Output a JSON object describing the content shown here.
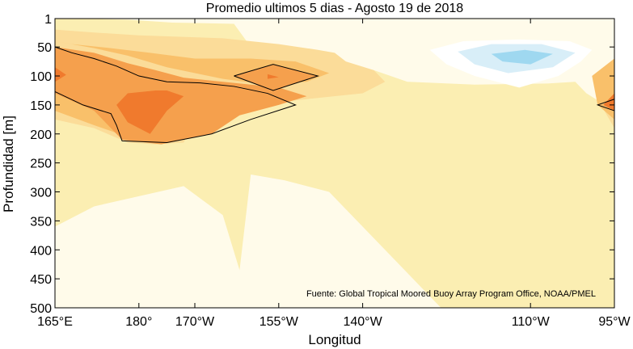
{
  "chart_data": {
    "type": "heatmap",
    "title": "Promedio ultimos 5 dias - Agosto 19 de 2018",
    "xlabel": "Longitud",
    "ylabel": "Profundidad [m]",
    "note": "Fuente: Global Tropical Moored Buoy Array Program Office, NOAA/PMEL",
    "x_ticks": [
      {
        "label": "165°E",
        "lon": 165
      },
      {
        "label": "180°",
        "lon": 180
      },
      {
        "label": "170°W",
        "lon": 190
      },
      {
        "label": "155°W",
        "lon": 205
      },
      {
        "label": "140°W",
        "lon": 220
      },
      {
        "label": "110°W",
        "lon": 250
      },
      {
        "label": "95°W",
        "lon": 265
      }
    ],
    "y_ticks": [
      1,
      50,
      100,
      150,
      200,
      250,
      300,
      350,
      400,
      450,
      500
    ],
    "xlim": [
      165,
      265
    ],
    "ylim": [
      500,
      1
    ],
    "grid": false,
    "regions": [
      {
        "level": "neutral",
        "color": "#fffbea",
        "points": [
          [
            165,
            1
          ],
          [
            265,
            1
          ],
          [
            265,
            500
          ],
          [
            165,
            500
          ]
        ]
      },
      {
        "level": "weak_warm",
        "color": "#fbeeb2",
        "points": [
          [
            165,
            1
          ],
          [
            170,
            1
          ],
          [
            178,
            3
          ],
          [
            186,
            8
          ],
          [
            197,
            10
          ],
          [
            200,
            50
          ],
          [
            208,
            55
          ],
          [
            213,
            75
          ],
          [
            217,
            85
          ],
          [
            222,
            90
          ],
          [
            228,
            110
          ],
          [
            240,
            115
          ],
          [
            253,
            113
          ],
          [
            258,
            110
          ],
          [
            260,
            130
          ],
          [
            265,
            160
          ],
          [
            265,
            500
          ],
          [
            234,
            500
          ],
          [
            214,
            300
          ],
          [
            206,
            280
          ],
          [
            200,
            270
          ],
          [
            198,
            435
          ],
          [
            195,
            340
          ],
          [
            188,
            290
          ],
          [
            172,
            325
          ],
          [
            165,
            360
          ]
        ]
      },
      {
        "level": "mid_warm",
        "color": "#fbdc99",
        "points": [
          [
            165,
            20
          ],
          [
            172,
            25
          ],
          [
            180,
            30
          ],
          [
            195,
            35
          ],
          [
            205,
            45
          ],
          [
            212,
            55
          ],
          [
            215,
            60
          ],
          [
            217,
            75
          ],
          [
            222,
            90
          ],
          [
            224,
            110
          ],
          [
            220,
            130
          ],
          [
            200,
            150
          ],
          [
            190,
            180
          ],
          [
            188,
            215
          ],
          [
            183,
            218
          ],
          [
            178,
            215
          ],
          [
            172,
            190
          ],
          [
            165,
            175
          ]
        ]
      },
      {
        "level": "mid_warm_east",
        "color": "#fbdc99",
        "points": [
          [
            265,
            90
          ],
          [
            262,
            110
          ],
          [
            262,
            140
          ],
          [
            265,
            190
          ]
        ]
      },
      {
        "level": "warm",
        "color": "#f9c06a",
        "points": [
          [
            165,
            40
          ],
          [
            172,
            52
          ],
          [
            178,
            65
          ],
          [
            185,
            85
          ],
          [
            195,
            105
          ],
          [
            203,
            115
          ],
          [
            210,
            110
          ],
          [
            214,
            95
          ],
          [
            208,
            75
          ],
          [
            200,
            70
          ],
          [
            190,
            70
          ],
          [
            182,
            60
          ],
          [
            175,
            52
          ],
          [
            168,
            45
          ]
        ]
      },
      {
        "level": "warm_lower",
        "color": "#f9c06a",
        "points": [
          [
            165,
            120
          ],
          [
            172,
            125
          ],
          [
            180,
            140
          ],
          [
            190,
            160
          ],
          [
            195,
            185
          ],
          [
            190,
            200
          ],
          [
            182,
            210
          ],
          [
            178,
            205
          ],
          [
            172,
            185
          ],
          [
            165,
            160
          ]
        ]
      },
      {
        "level": "warm_east",
        "color": "#f9c06a",
        "points": [
          [
            265,
            70
          ],
          [
            261,
            100
          ],
          [
            262,
            150
          ],
          [
            265,
            175
          ]
        ]
      },
      {
        "level": "hot",
        "color": "#f5a04d",
        "points": [
          [
            165,
            50
          ],
          [
            172,
            60
          ],
          [
            178,
            78
          ],
          [
            183,
            90
          ],
          [
            188,
            103
          ],
          [
            195,
            110
          ],
          [
            200,
            115
          ],
          [
            205,
            120
          ],
          [
            210,
            135
          ],
          [
            205,
            150
          ],
          [
            198,
            168
          ],
          [
            193,
            200
          ],
          [
            184,
            218
          ],
          [
            177,
            210
          ],
          [
            175,
            190
          ],
          [
            172,
            160
          ],
          [
            165,
            130
          ]
        ]
      },
      {
        "level": "hot_core",
        "color": "#f5a04d",
        "points": [
          [
            197,
            100
          ],
          [
            204,
            80
          ],
          [
            212,
            100
          ],
          [
            204,
            125
          ]
        ]
      },
      {
        "level": "hotter",
        "color": "#f07a2d",
        "points": [
          [
            165,
            85
          ],
          [
            167,
            98
          ],
          [
            165,
            110
          ]
        ]
      },
      {
        "level": "hotter_mid",
        "color": "#f07a2d",
        "points": [
          [
            178,
            130
          ],
          [
            183,
            125
          ],
          [
            185,
            125
          ],
          [
            188,
            135
          ],
          [
            185,
            160
          ],
          [
            182,
            200
          ],
          [
            178,
            180
          ],
          [
            176,
            150
          ]
        ]
      },
      {
        "level": "hotter_point",
        "color": "#f07a2d",
        "points": [
          [
            203,
            97
          ],
          [
            205,
            102
          ],
          [
            203,
            105
          ]
        ]
      },
      {
        "level": "hotter_east",
        "color": "#f07a2d",
        "points": [
          [
            265,
            130
          ],
          [
            263,
            150
          ],
          [
            265,
            160
          ]
        ]
      },
      {
        "level": "cool_ring",
        "color": "#ffffff",
        "points": [
          [
            232,
            55
          ],
          [
            238,
            40
          ],
          [
            248,
            37
          ],
          [
            257,
            40
          ],
          [
            261,
            55
          ],
          [
            259,
            75
          ],
          [
            255,
            100
          ],
          [
            248,
            120
          ],
          [
            240,
            100
          ],
          [
            235,
            80
          ]
        ]
      },
      {
        "level": "cool",
        "color": "#d8eef8",
        "points": [
          [
            237,
            58
          ],
          [
            243,
            45
          ],
          [
            252,
            45
          ],
          [
            258,
            60
          ],
          [
            254,
            85
          ],
          [
            246,
            95
          ],
          [
            240,
            80
          ]
        ]
      },
      {
        "level": "cooler",
        "color": "#9fd8f0",
        "points": [
          [
            243,
            62
          ],
          [
            249,
            55
          ],
          [
            254,
            62
          ],
          [
            250,
            80
          ],
          [
            245,
            75
          ]
        ]
      }
    ],
    "contours": [
      [
        [
          165,
          50
        ],
        [
          168,
          60
        ],
        [
          172,
          70
        ],
        [
          176,
          83
        ],
        [
          180,
          100
        ],
        [
          185,
          110
        ],
        [
          191,
          112
        ],
        [
          197,
          118
        ],
        [
          203,
          130
        ],
        [
          208,
          150
        ],
        [
          200,
          175
        ],
        [
          193,
          200
        ],
        [
          185,
          215
        ],
        [
          177,
          212
        ],
        [
          176,
          185
        ],
        [
          175,
          165
        ],
        [
          170,
          150
        ],
        [
          165,
          127
        ]
      ],
      [
        [
          197,
          100
        ],
        [
          204,
          80
        ],
        [
          212,
          100
        ],
        [
          204,
          125
        ],
        [
          197,
          100
        ]
      ],
      [
        [
          265,
          140
        ],
        [
          262,
          150
        ],
        [
          265,
          160
        ]
      ]
    ]
  }
}
